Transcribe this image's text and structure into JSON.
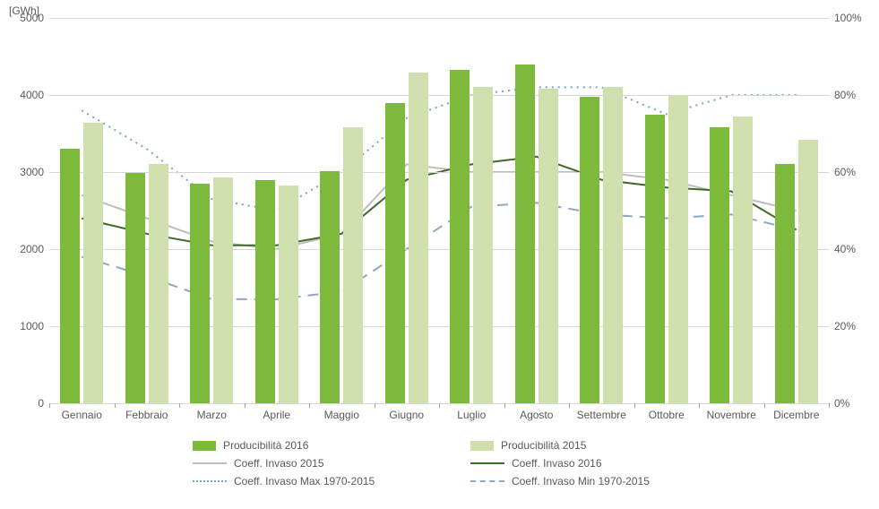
{
  "chart": {
    "type": "bar+line",
    "categories": [
      "Gennaio",
      "Febbraio",
      "Marzo",
      "Aprile",
      "Maggio",
      "Giugno",
      "Luglio",
      "Agosto",
      "Settembre",
      "Ottobre",
      "Novembre",
      "Dicembre"
    ],
    "bars": {
      "prod2016": {
        "values": [
          3300,
          2990,
          2850,
          2900,
          3010,
          3900,
          4320,
          4390,
          3980,
          3750,
          3580,
          3100
        ],
        "color": "#7dba3b"
      },
      "prod2015": {
        "values": [
          3640,
          3100,
          2930,
          2830,
          3580,
          4290,
          4100,
          4080,
          4110,
          4000,
          3720,
          3420
        ],
        "color": "#cfe0ae"
      }
    },
    "lines": {
      "invaso2015": {
        "values": [
          54,
          48,
          42,
          40,
          44,
          62,
          60,
          60,
          60,
          58,
          54,
          50
        ],
        "color": "#bdbdbd",
        "width": 2,
        "dash": "none"
      },
      "invaso2016": {
        "values": [
          48,
          44,
          41,
          41,
          44,
          58,
          62,
          64,
          58,
          56,
          55,
          45
        ],
        "color": "#3f6b2a",
        "width": 2,
        "dash": "none"
      },
      "invasoMax": {
        "values": [
          76,
          66,
          53,
          50,
          60,
          74,
          80,
          82,
          82,
          75,
          80,
          80
        ],
        "color": "#6fa8c2",
        "width": 2,
        "dash": "dotted"
      },
      "invasoMin": {
        "values": [
          38,
          33,
          27,
          27,
          29,
          40,
          51,
          52,
          49,
          48,
          49,
          45
        ],
        "color": "#8fa7c2",
        "width": 2,
        "dash": "dashed"
      }
    },
    "yLeft": {
      "title": "[GWh]",
      "min": 0,
      "max": 5000,
      "step": 1000,
      "labels": [
        "0",
        "1000",
        "2000",
        "3000",
        "4000",
        "5000"
      ]
    },
    "yRight": {
      "min": 0,
      "max": 100,
      "step": 20,
      "labels": [
        "0%",
        "20%",
        "40%",
        "60%",
        "80%",
        "100%"
      ]
    },
    "barWidthFrac": 0.3,
    "barGapFrac": 0.06,
    "grid_color": "#d6d6d6",
    "axis_color": "#a0a0a0",
    "text_color": "#5a5a5a",
    "label_fontsize": 12
  },
  "legend": {
    "prod2016": "Producibilità 2016",
    "prod2015": "Producibilità 2015",
    "invaso2015": "Coeff. Invaso 2015",
    "invaso2016": "Coeff. Invaso 2016",
    "invasoMax": "Coeff. Invaso Max 1970-2015",
    "invasoMin": "Coeff. Invaso Min 1970-2015"
  }
}
